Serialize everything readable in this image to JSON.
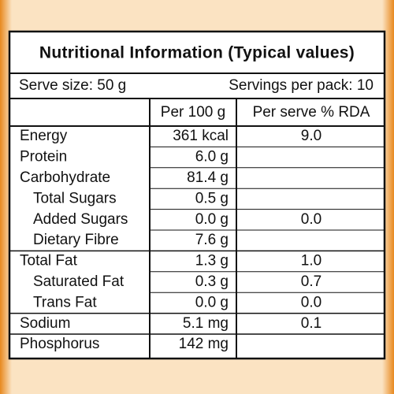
{
  "title": "Nutritional Information (Typical values)",
  "serve_size": "Serve size: 50 g",
  "servings": "Servings per pack: 10",
  "table": {
    "columns": [
      "Per 100 g",
      "Per serve % RDA"
    ],
    "rows": [
      [
        "Energy",
        "361 kcal",
        "9.0"
      ],
      [
        "Protein",
        "6.0 g"
      ],
      [
        "Carbohydrate",
        "81.4 g"
      ],
      [
        "Total Sugars",
        "0.5 g"
      ],
      [
        "Added Sugars",
        "0.0 g",
        "0.0"
      ],
      [
        "Dietary Fibre",
        "7.6 g"
      ],
      [
        "Total Fat",
        "1.3 g",
        "1.0"
      ],
      [
        "Saturated Fat",
        "0.3 g",
        "0.7"
      ],
      [
        "Trans Fat",
        "0.0 g",
        "0.0"
      ],
      [
        "Sodium",
        "5.1 mg",
        "0.1"
      ],
      [
        "Phosphorus",
        "142 mg"
      ]
    ]
  }
}
